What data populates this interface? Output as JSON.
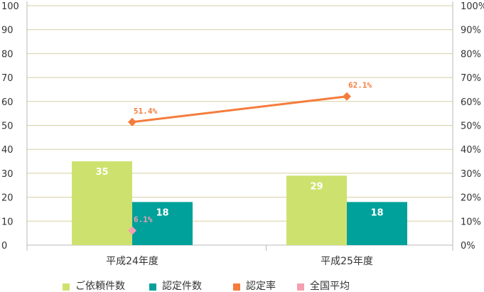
{
  "chart_data": {
    "type": "bar",
    "categories": [
      "平成24年度",
      "平成25年度"
    ],
    "series": [
      {
        "name": "ご依頼件数",
        "type": "bar",
        "axis": "left",
        "values": [
          35,
          29
        ],
        "color": "#cde26e"
      },
      {
        "name": "認定件数",
        "type": "bar",
        "axis": "left",
        "values": [
          18,
          18
        ],
        "color": "#00a19a"
      },
      {
        "name": "認定率",
        "type": "line",
        "axis": "right",
        "values": [
          51.4,
          62.1
        ],
        "labels": [
          "51.4%",
          "62.1%"
        ],
        "color": "#f47c3c"
      },
      {
        "name": "全国平均",
        "type": "scatter",
        "axis": "right",
        "values": [
          6.1,
          null
        ],
        "labels": [
          "6.1%",
          ""
        ],
        "color": "#f4a0b0"
      }
    ],
    "y_left": {
      "ylim": [
        0,
        100
      ],
      "ticks": [
        "0",
        "10",
        "20",
        "30",
        "40",
        "50",
        "60",
        "70",
        "80",
        "90",
        "100"
      ]
    },
    "y_right": {
      "ylim": [
        0,
        100
      ],
      "ticks": [
        "0%",
        "10%",
        "20%",
        "30%",
        "40%",
        "50%",
        "60%",
        "70%",
        "80%",
        "90%",
        "100%"
      ]
    },
    "grid": true,
    "legend_position": "bottom",
    "gridline_color": "#d8cfa0",
    "axis_color": "#b8b8b8"
  }
}
